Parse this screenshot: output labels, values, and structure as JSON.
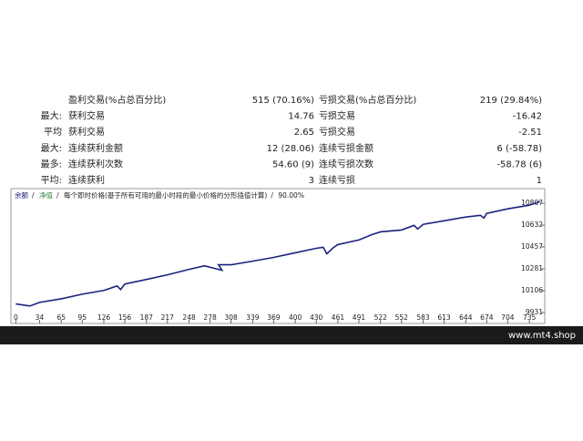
{
  "table": {
    "rows": [
      {
        "name1": "盈利交易(%占总百分比)",
        "value1": "515 (70.16%)",
        "name2": "亏损交易(%占总百分比)",
        "value2": "219 (29.84%)"
      },
      {
        "label": "最大:",
        "name1": "获利交易",
        "value1": "14.76",
        "name2": "亏损交易",
        "value2": "-16.42"
      },
      {
        "label": "平均",
        "name1": "获利交易",
        "value1": "2.65",
        "name2": "亏损交易",
        "value2": "-2.51"
      },
      {
        "label": "最大:",
        "name1": "连续获利金额",
        "value1": "12 (28.06)",
        "name2": "连续亏损金额",
        "value2": "6 (-58.78)"
      },
      {
        "label": "最多:",
        "name1": "连续获利次数",
        "value1": "54.60 (9)",
        "name2": "连续亏损次数",
        "value2": "-58.78 (6)"
      },
      {
        "label": "平均:",
        "name1": "连续获利",
        "value1": "3",
        "name2": "连续亏损",
        "value2": "1"
      }
    ]
  },
  "chart_data": {
    "type": "line",
    "legend": [
      "余额",
      "净值",
      "每个即时价格(基于所有可用的最小时段的最小价格的分形插值计算)",
      "90.00%"
    ],
    "x": [
      0,
      20,
      34,
      65,
      95,
      126,
      145,
      150,
      156,
      187,
      217,
      248,
      270,
      295,
      290,
      308,
      339,
      369,
      400,
      430,
      440,
      445,
      455,
      461,
      491,
      510,
      522,
      552,
      570,
      575,
      583,
      613,
      644,
      665,
      670,
      674,
      704,
      735,
      750
    ],
    "series": [
      {
        "name": "余额",
        "color": "#1a237e",
        "values": [
          10000,
          9983,
          10012,
          10041,
          10078,
          10108,
          10144,
          10115,
          10159,
          10196,
          10233,
          10277,
          10306,
          10270,
          10314,
          10314,
          10343,
          10373,
          10410,
          10446,
          10454,
          10402,
          10454,
          10476,
          10513,
          10557,
          10578,
          10593,
          10630,
          10601,
          10638,
          10667,
          10697,
          10711,
          10689,
          10726,
          10763,
          10792,
          10822
        ]
      }
    ],
    "xlim": [
      -7,
      757
    ],
    "ylim": [
      9843,
      10925
    ],
    "xticks": [
      0,
      34,
      65,
      95,
      126,
      156,
      187,
      217,
      248,
      278,
      308,
      339,
      369,
      400,
      430,
      461,
      491,
      522,
      552,
      583,
      613,
      644,
      674,
      704,
      735
    ],
    "yticks": [
      9931,
      10106,
      10281,
      10457,
      10632,
      10807
    ]
  },
  "footer": {
    "site": "www.mt4.shop"
  }
}
